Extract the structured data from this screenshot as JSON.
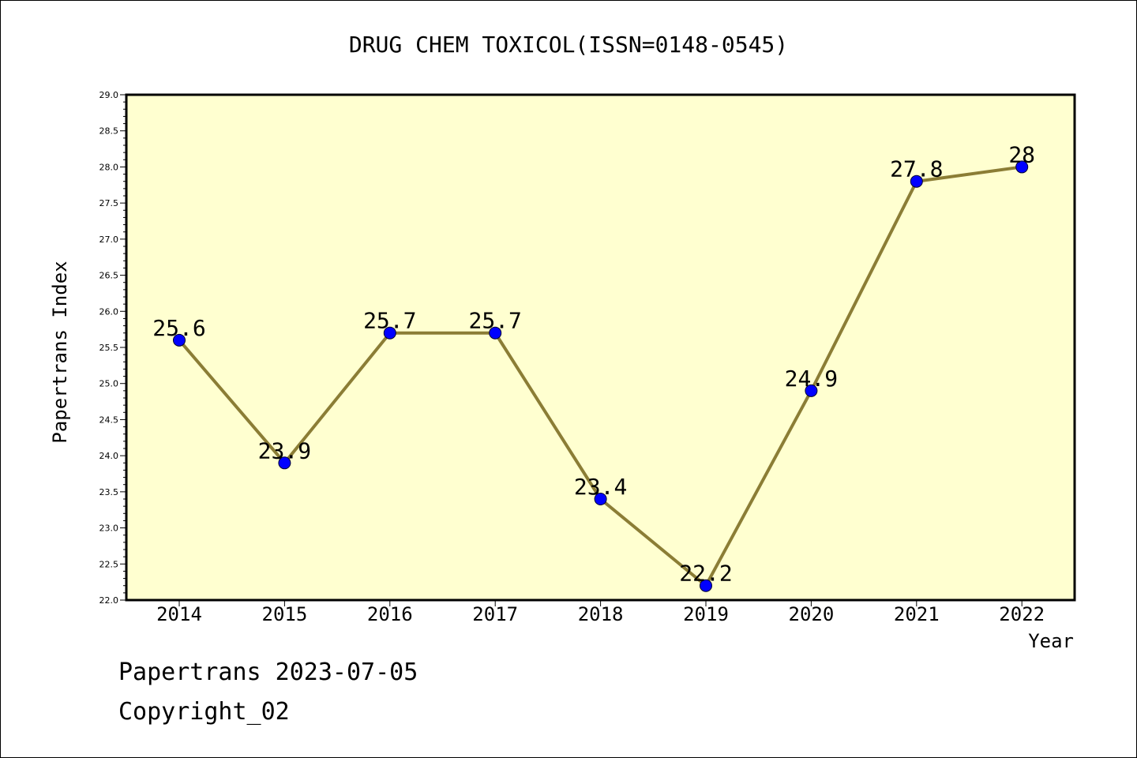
{
  "chart_data": {
    "type": "line",
    "title": "DRUG CHEM TOXICOL(ISSN=0148-0545)",
    "xlabel": "Year",
    "ylabel": "Papertrans Index",
    "categories": [
      "2014",
      "2015",
      "2016",
      "2017",
      "2018",
      "2019",
      "2020",
      "2021",
      "2022"
    ],
    "series": [
      {
        "values": [
          25.6,
          23.9,
          25.7,
          25.7,
          23.4,
          22.2,
          24.9,
          27.8,
          28.0
        ],
        "data_labels": [
          "25.6",
          "23.9",
          "25.7",
          "25.7",
          "23.4",
          "22.2",
          "24.9",
          "27.8",
          "28"
        ]
      }
    ],
    "ylim": [
      22.0,
      29.0
    ],
    "yticks": [
      "22.0",
      "22.5",
      "23.0",
      "23.5",
      "24.0",
      "24.5",
      "25.0",
      "25.5",
      "26.0",
      "26.5",
      "27.0",
      "27.5",
      "28.0",
      "28.5",
      "29.0"
    ],
    "grid": false,
    "colors": {
      "plot_background": "#ffffd0",
      "line": "#8b7d35",
      "marker": "#0000ff"
    }
  },
  "footer": {
    "date_line": "Papertrans 2023-07-05",
    "copyright": "Copyright_02"
  }
}
